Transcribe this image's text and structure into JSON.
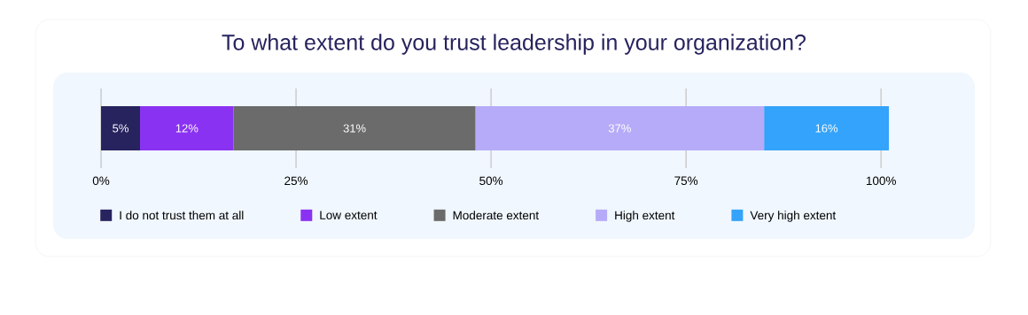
{
  "chart_data": {
    "type": "bar",
    "orientation": "horizontal",
    "stacked": true,
    "title": "To what extent do you trust leadership in your organization?",
    "categories": [
      null
    ],
    "series": [
      {
        "name": "I do not trust them at all",
        "color": "#27235e",
        "values": [
          5
        ],
        "value_labels": [
          "5%"
        ]
      },
      {
        "name": "Low extent",
        "color": "#8a32f2",
        "values": [
          12
        ],
        "value_labels": [
          "12%"
        ]
      },
      {
        "name": "Moderate extent",
        "color": "#6b6b6b",
        "values": [
          31
        ],
        "value_labels": [
          "31%"
        ]
      },
      {
        "name": "High extent",
        "color": "#b6abf8",
        "values": [
          37
        ],
        "value_labels": [
          "37%"
        ]
      },
      {
        "name": "Very high extent",
        "color": "#33a3fb",
        "values": [
          16
        ],
        "value_labels": [
          "16%"
        ]
      }
    ],
    "xlim": [
      0,
      101
    ],
    "xticks": [
      {
        "value": 0,
        "label": "0%"
      },
      {
        "value": 25,
        "label": "25%"
      },
      {
        "value": 50,
        "label": "50%"
      },
      {
        "value": 75,
        "label": "75%"
      },
      {
        "value": 100,
        "label": "100%"
      }
    ],
    "grid": "x",
    "legend": "bottom"
  }
}
